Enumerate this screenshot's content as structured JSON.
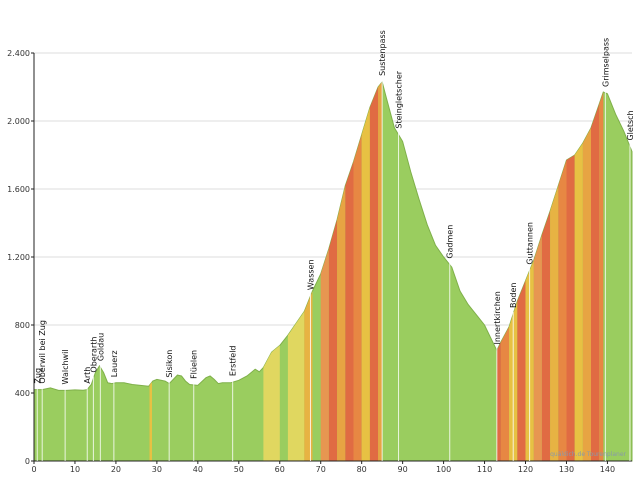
{
  "chart_data": {
    "type": "area",
    "title": "",
    "xlabel": "",
    "ylabel": "",
    "xlim": [
      0,
      146
    ],
    "ylim": [
      0,
      2400
    ],
    "x_ticks": [
      0,
      10,
      20,
      30,
      40,
      50,
      60,
      70,
      80,
      90,
      100,
      110,
      120,
      130,
      140
    ],
    "y_ticks": [
      0,
      400,
      800,
      1200,
      1600,
      2000,
      2400
    ],
    "y_tick_labels": [
      "0",
      "400",
      "800",
      "1.200",
      "1.600",
      "2.000",
      "2.400"
    ],
    "grid": true,
    "fill_color": "#9acd5f",
    "edge_color": "#7fb04a",
    "x": [
      0,
      2,
      4,
      6,
      8,
      10,
      12,
      13,
      14,
      15,
      16,
      17,
      18,
      19,
      20,
      22,
      24,
      26,
      28,
      29,
      30,
      32,
      33,
      34,
      35,
      36,
      37,
      38,
      40,
      42,
      43,
      44,
      45,
      46,
      48,
      50,
      52,
      54,
      55,
      56,
      58,
      60,
      62,
      64,
      66,
      68,
      70,
      72,
      74,
      76,
      78,
      80,
      82,
      84,
      85,
      86,
      88,
      90,
      92,
      94,
      96,
      98,
      100,
      102,
      104,
      106,
      108,
      110,
      112,
      113,
      114,
      116,
      118,
      120,
      122,
      124,
      126,
      128,
      130,
      132,
      134,
      136,
      138,
      139,
      140,
      142,
      144,
      146
    ],
    "elevation": [
      420,
      420,
      430,
      415,
      415,
      418,
      416,
      420,
      450,
      520,
      560,
      520,
      460,
      455,
      460,
      460,
      450,
      445,
      440,
      470,
      480,
      470,
      455,
      480,
      505,
      500,
      470,
      450,
      445,
      490,
      500,
      480,
      455,
      460,
      460,
      475,
      500,
      540,
      525,
      550,
      640,
      680,
      740,
      810,
      880,
      1000,
      1100,
      1250,
      1420,
      1620,
      1760,
      1920,
      2080,
      2200,
      2230,
      2140,
      1960,
      1880,
      1700,
      1540,
      1390,
      1270,
      1200,
      1140,
      1000,
      920,
      860,
      800,
      700,
      650,
      700,
      790,
      940,
      1060,
      1180,
      1330,
      1470,
      1620,
      1770,
      1800,
      1870,
      1960,
      2100,
      2170,
      2160,
      2040,
      1940,
      1820
    ],
    "steep_segments": [
      {
        "from": 28.2,
        "to": 28.8,
        "color": "#f0c040"
      },
      {
        "from": 56.0,
        "to": 60.0,
        "color": "#e8d860"
      },
      {
        "from": 62.0,
        "to": 66.0,
        "color": "#e8d860"
      },
      {
        "from": 66.0,
        "to": 68.0,
        "color": "#f0b040"
      },
      {
        "from": 70.0,
        "to": 72.0,
        "color": "#f09050"
      },
      {
        "from": 72.0,
        "to": 74.0,
        "color": "#e86040"
      },
      {
        "from": 74.0,
        "to": 76.0,
        "color": "#f0a040"
      },
      {
        "from": 76.0,
        "to": 78.0,
        "color": "#e86040"
      },
      {
        "from": 78.0,
        "to": 80.0,
        "color": "#f08040"
      },
      {
        "from": 80.0,
        "to": 82.0,
        "color": "#f0c040"
      },
      {
        "from": 82.0,
        "to": 84.0,
        "color": "#e86040"
      },
      {
        "from": 84.0,
        "to": 85.0,
        "color": "#f0a040"
      },
      {
        "from": 113.0,
        "to": 114.0,
        "color": "#e86040"
      },
      {
        "from": 114.0,
        "to": 116.0,
        "color": "#f08040"
      },
      {
        "from": 116.0,
        "to": 118.0,
        "color": "#f0c040"
      },
      {
        "from": 118.0,
        "to": 120.0,
        "color": "#e86040"
      },
      {
        "from": 120.0,
        "to": 122.0,
        "color": "#f0c040"
      },
      {
        "from": 122.0,
        "to": 124.0,
        "color": "#f09050"
      },
      {
        "from": 124.0,
        "to": 126.0,
        "color": "#e86040"
      },
      {
        "from": 126.0,
        "to": 128.0,
        "color": "#f0b040"
      },
      {
        "from": 128.0,
        "to": 130.0,
        "color": "#f08040"
      },
      {
        "from": 130.0,
        "to": 132.0,
        "color": "#e86040"
      },
      {
        "from": 132.0,
        "to": 134.0,
        "color": "#f0c040"
      },
      {
        "from": 134.0,
        "to": 136.0,
        "color": "#f0a040"
      },
      {
        "from": 136.0,
        "to": 138.0,
        "color": "#e86040"
      },
      {
        "from": 138.0,
        "to": 139.0,
        "color": "#f08040"
      }
    ],
    "places": [
      {
        "name": "Zug",
        "x": 0.8
      },
      {
        "name": "Oberwil bei Zug",
        "x": 2.0
      },
      {
        "name": "Walchwil",
        "x": 7.6
      },
      {
        "name": "Arth",
        "x": 13.0
      },
      {
        "name": "Oberarth",
        "x": 14.5
      },
      {
        "name": "Goldau",
        "x": 16.2
      },
      {
        "name": "Lauerz",
        "x": 19.5
      },
      {
        "name": "Sisikon",
        "x": 33.0
      },
      {
        "name": "Flüelen",
        "x": 39.0
      },
      {
        "name": "Erstfeld",
        "x": 48.5
      },
      {
        "name": "Wassen",
        "x": 67.5
      },
      {
        "name": "Sustenpass",
        "x": 85.0
      },
      {
        "name": "Steingletscher",
        "x": 89.0
      },
      {
        "name": "Gadmen",
        "x": 101.5
      },
      {
        "name": "Innertkirchen",
        "x": 113.0
      },
      {
        "name": "Boden",
        "x": 117.0
      },
      {
        "name": "Guttannen",
        "x": 121.0
      },
      {
        "name": "Grimselpass",
        "x": 139.5
      },
      {
        "name": "Gletsch",
        "x": 145.5
      }
    ],
    "credit": "quäldich.de Tourenplaner"
  }
}
